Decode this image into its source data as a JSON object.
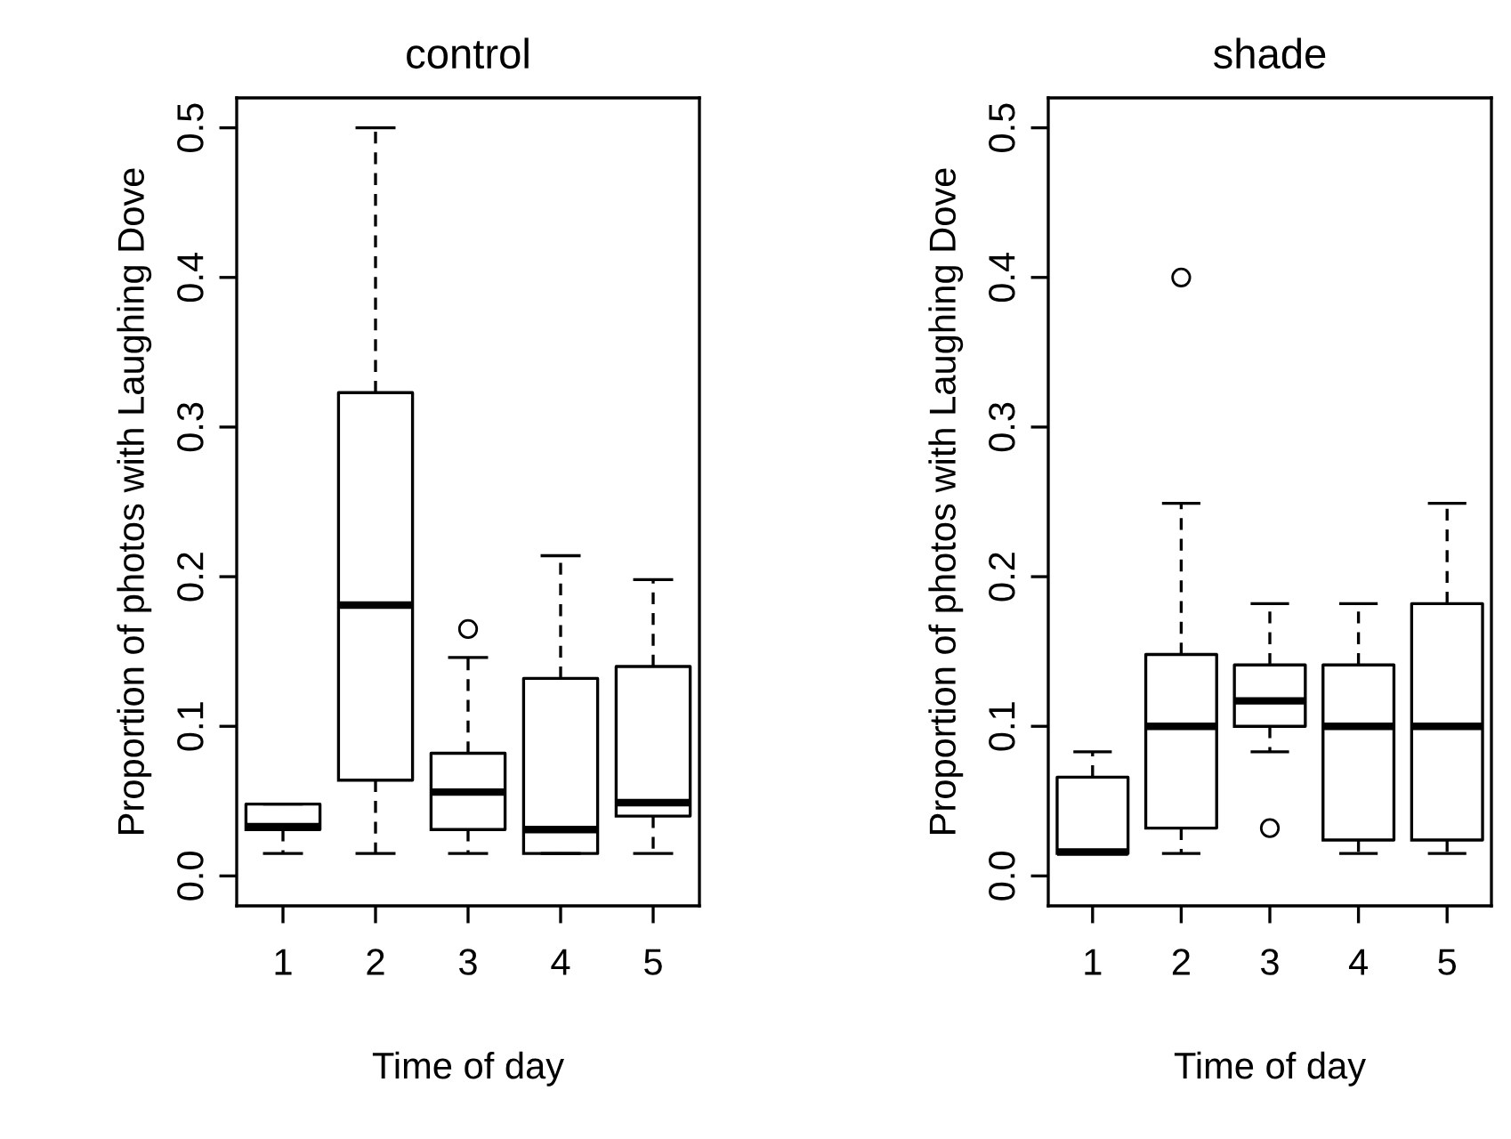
{
  "chart_data": [
    {
      "type": "box",
      "title": "control",
      "xlabel": "Time of day",
      "ylabel": "Proportion of photos with Laughing Dove",
      "categories": [
        "1",
        "2",
        "3",
        "4",
        "5"
      ],
      "ylim": [
        -0.02,
        0.52
      ],
      "yticks": [
        {
          "value": 0,
          "label": "0.0"
        },
        0.1,
        0.2,
        0.3,
        0.4,
        0.5
      ],
      "grid": false,
      "boxes": [
        {
          "low": 0.015,
          "q1": 0.031,
          "median": 0.033,
          "q3": 0.048,
          "high": 0.048
        },
        {
          "low": 0.015,
          "q1": 0.064,
          "median": 0.181,
          "q3": 0.323,
          "high": 0.5
        },
        {
          "low": 0.015,
          "q1": 0.031,
          "median": 0.056,
          "q3": 0.082,
          "high": 0.146,
          "outliers": [
            0.165
          ]
        },
        {
          "low": 0.015,
          "q1": 0.015,
          "median": 0.031,
          "q3": 0.132,
          "high": 0.214
        },
        {
          "low": 0.015,
          "q1": 0.04,
          "median": 0.049,
          "q3": 0.14,
          "high": 0.198
        }
      ]
    },
    {
      "type": "box",
      "title": "shade",
      "xlabel": "Time of day",
      "ylabel": "Proportion of photos with Laughing Dove",
      "categories": [
        "1",
        "2",
        "3",
        "4",
        "5"
      ],
      "ylim": [
        -0.02,
        0.52
      ],
      "yticks": [
        {
          "value": 0,
          "label": "0.0"
        },
        0.1,
        0.2,
        0.3,
        0.4,
        0.5
      ],
      "grid": false,
      "boxes": [
        {
          "low": 0.015,
          "q1": 0.015,
          "median": 0.016,
          "q3": 0.066,
          "high": 0.083
        },
        {
          "low": 0.015,
          "q1": 0.032,
          "median": 0.1,
          "q3": 0.148,
          "high": 0.249,
          "outliers": [
            0.4
          ]
        },
        {
          "low": 0.083,
          "q1": 0.1,
          "median": 0.117,
          "q3": 0.141,
          "high": 0.182,
          "outliers": [
            0.032
          ]
        },
        {
          "low": 0.015,
          "q1": 0.024,
          "median": 0.1,
          "q3": 0.141,
          "high": 0.182
        },
        {
          "low": 0.015,
          "q1": 0.024,
          "median": 0.1,
          "q3": 0.182,
          "high": 0.249
        }
      ]
    }
  ]
}
